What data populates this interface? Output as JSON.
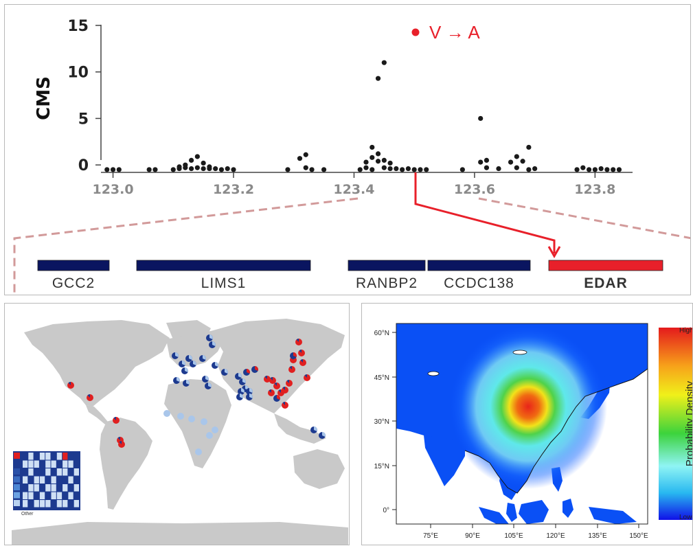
{
  "panel_a": {
    "y_axis_label": "CMS",
    "variant_label": "V → A",
    "colors": {
      "points": "#1a1a1a",
      "highlight": "#e8202a",
      "genes": "#0a1560",
      "zoom_lines": "#d29a9a"
    },
    "genes": [
      {
        "name": "GCC2",
        "start": 0,
        "end": 1
      },
      {
        "name": "LIMS1",
        "start": 0,
        "end": 1
      },
      {
        "name": "RANBP2",
        "start": 0,
        "end": 1
      },
      {
        "name": "CCDC138",
        "start": 0,
        "end": 1
      },
      {
        "name": "EDAR",
        "start": 0,
        "end": 1,
        "highlight": true
      }
    ]
  },
  "chart_data": [
    {
      "type": "scatter",
      "title": "",
      "xlabel": "",
      "ylabel": "CMS",
      "xlim": [
        122.98,
        123.86
      ],
      "ylim": [
        -0.8,
        15
      ],
      "x_ticks": [
        "123.0",
        "123.2",
        "123.4",
        "123.6",
        "123.8"
      ],
      "x_tick_values": [
        123.0,
        123.2,
        123.4,
        123.6,
        123.8
      ],
      "y_ticks": [
        "0",
        "5",
        "10",
        "15"
      ],
      "y_tick_values": [
        0,
        5,
        10,
        15
      ],
      "series": [
        {
          "points": [
            [
              122.99,
              -0.5
            ],
            [
              123.0,
              -0.5
            ],
            [
              123.01,
              -0.5
            ],
            [
              123.06,
              -0.5
            ],
            [
              123.07,
              -0.5
            ],
            [
              123.1,
              -0.5
            ],
            [
              123.11,
              -0.4
            ],
            [
              123.11,
              -0.2
            ],
            [
              123.12,
              -0.3
            ],
            [
              123.12,
              0.0
            ],
            [
              123.13,
              -0.4
            ],
            [
              123.13,
              0.5
            ],
            [
              123.14,
              -0.3
            ],
            [
              123.14,
              0.9
            ],
            [
              123.15,
              -0.4
            ],
            [
              123.15,
              0.2
            ],
            [
              123.16,
              -0.4
            ],
            [
              123.16,
              -0.2
            ],
            [
              123.17,
              -0.4
            ],
            [
              123.18,
              -0.5
            ],
            [
              123.19,
              -0.4
            ],
            [
              123.2,
              -0.5
            ],
            [
              123.29,
              -0.5
            ],
            [
              123.31,
              0.7
            ],
            [
              123.32,
              1.1
            ],
            [
              123.32,
              -0.3
            ],
            [
              123.33,
              -0.5
            ],
            [
              123.35,
              -0.5
            ],
            [
              123.41,
              -0.5
            ],
            [
              123.42,
              0.3
            ],
            [
              123.42,
              -0.3
            ],
            [
              123.43,
              0.8
            ],
            [
              123.43,
              1.9
            ],
            [
              123.43,
              -0.5
            ],
            [
              123.44,
              0.4
            ],
            [
              123.44,
              1.2
            ],
            [
              123.44,
              9.3
            ],
            [
              123.45,
              11.0
            ],
            [
              123.45,
              0.5
            ],
            [
              123.45,
              -0.3
            ],
            [
              123.46,
              0.2
            ],
            [
              123.46,
              -0.4
            ],
            [
              123.47,
              -0.4
            ],
            [
              123.48,
              -0.5
            ],
            [
              123.49,
              -0.4
            ],
            [
              123.5,
              -0.5
            ],
            [
              123.51,
              -0.5
            ],
            [
              123.52,
              -0.5
            ],
            [
              123.58,
              -0.5
            ],
            [
              123.61,
              0.3
            ],
            [
              123.61,
              5.0
            ],
            [
              123.62,
              0.5
            ],
            [
              123.62,
              -0.3
            ],
            [
              123.64,
              -0.4
            ],
            [
              123.66,
              0.3
            ],
            [
              123.67,
              0.9
            ],
            [
              123.67,
              -0.3
            ],
            [
              123.68,
              0.4
            ],
            [
              123.69,
              1.9
            ],
            [
              123.69,
              -0.5
            ],
            [
              123.7,
              -0.4
            ],
            [
              123.77,
              -0.5
            ],
            [
              123.78,
              -0.3
            ],
            [
              123.79,
              -0.5
            ],
            [
              123.8,
              -0.5
            ],
            [
              123.81,
              -0.4
            ],
            [
              123.82,
              -0.5
            ],
            [
              123.83,
              -0.5
            ],
            [
              123.84,
              -0.5
            ]
          ]
        }
      ],
      "highlight_point": [
        123.51,
        14.0
      ]
    },
    {
      "type": "map",
      "title": "",
      "legend": {
        "entries": [
          "Other"
        ],
        "placement": "bottom-left"
      },
      "colors": {
        "land": "#c9c9c9",
        "ocean": "#ffffff",
        "dark": "#1d3a8f",
        "red": "#e02020",
        "light": "#a9c6ea"
      }
    },
    {
      "type": "heatmap",
      "title": "",
      "y_ticks": [
        "60°N",
        "45°N",
        "30°N",
        "15°N",
        "0°"
      ],
      "x_ticks": [
        "75°E",
        "90°E",
        "105°E",
        "120°E",
        "135°E",
        "150°E"
      ],
      "colorbar": {
        "label": "Probability Density",
        "high": "High",
        "low": "Lower"
      }
    }
  ]
}
